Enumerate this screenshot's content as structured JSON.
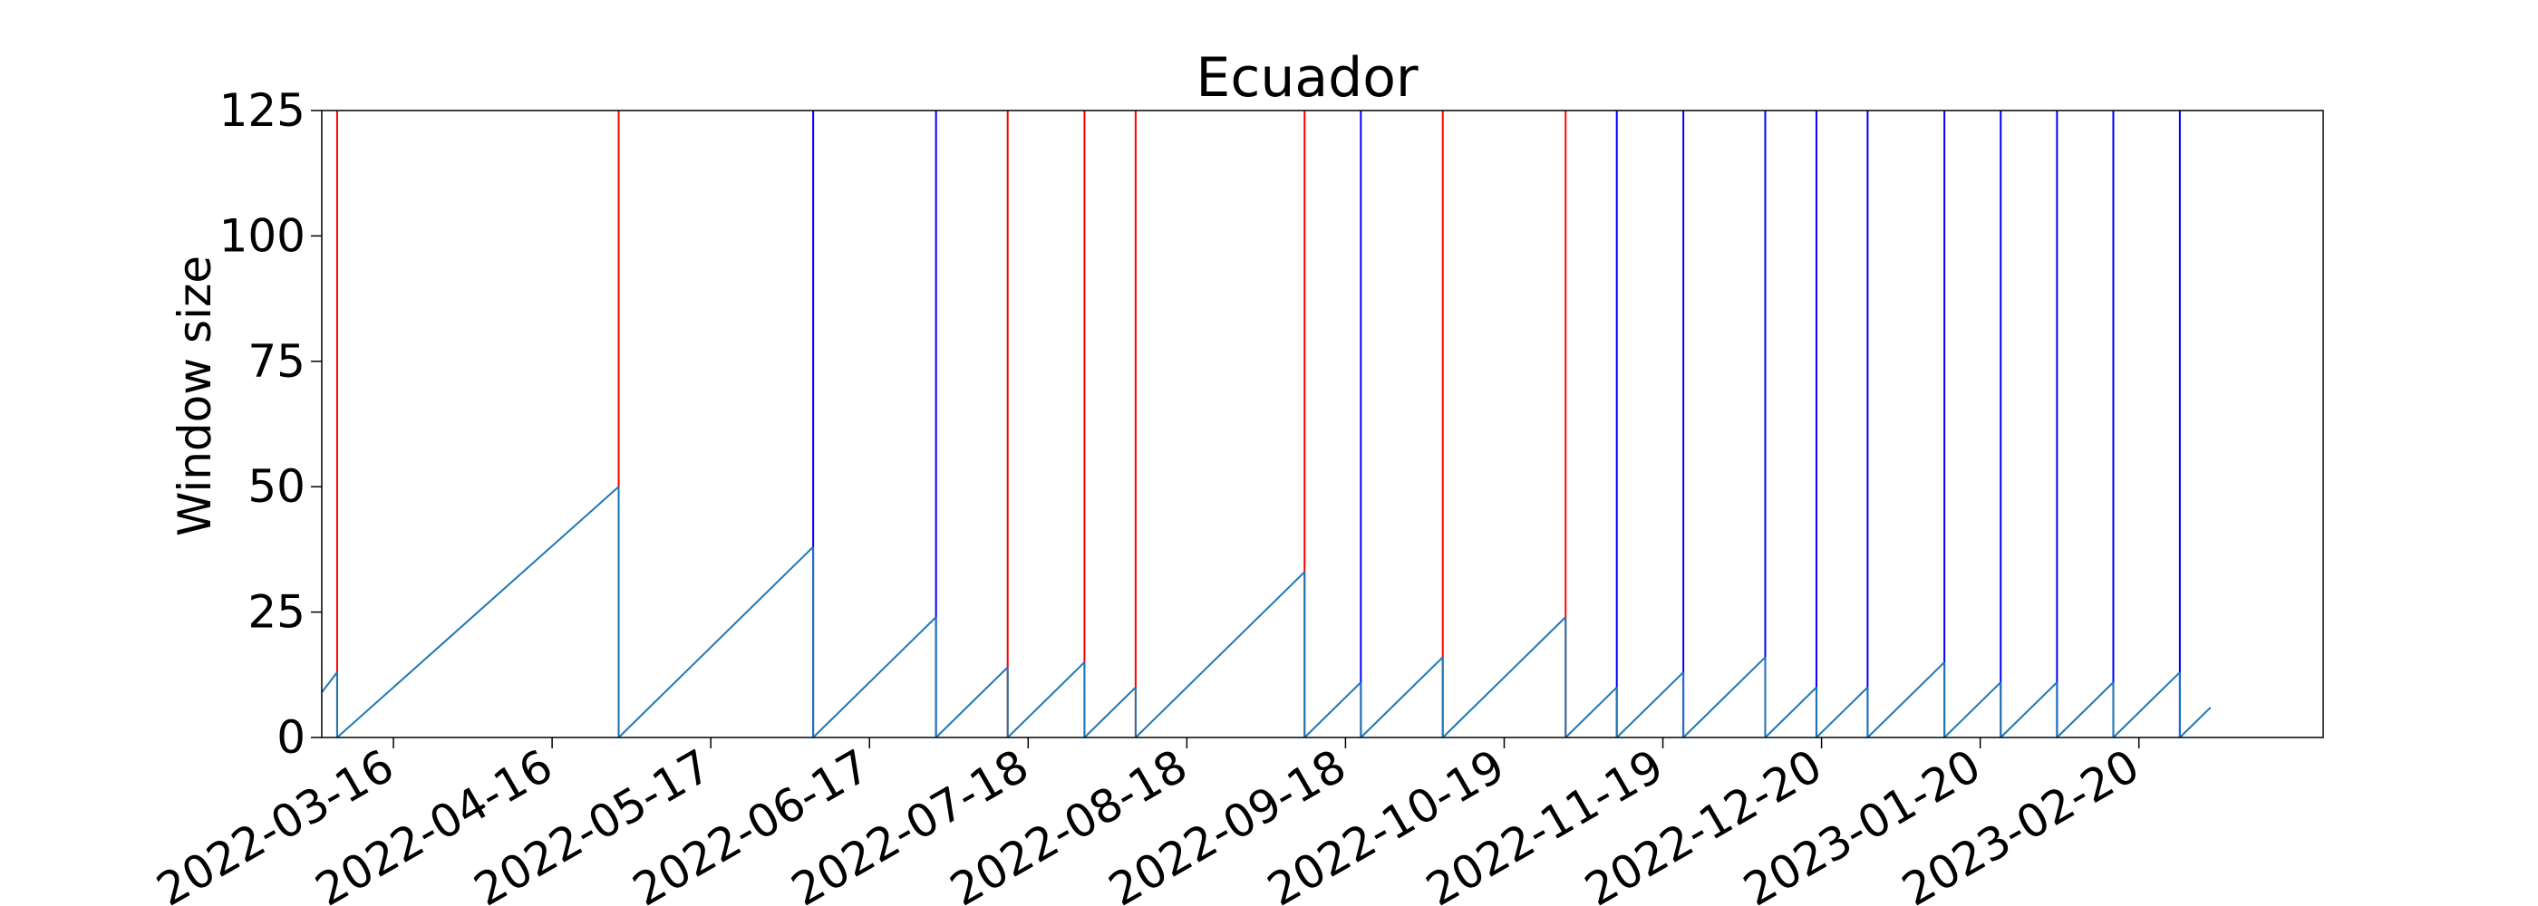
{
  "chart_data": {
    "type": "line",
    "title": "Ecuador",
    "xlabel": "",
    "ylabel": "Window size",
    "xlim": [
      "2022-03-02",
      "2023-03-28"
    ],
    "ylim": [
      0,
      125
    ],
    "yticks": [
      0,
      25,
      50,
      75,
      100,
      125
    ],
    "xticks": [
      "2022-03-16",
      "2022-04-16",
      "2022-05-17",
      "2022-06-17",
      "2022-07-18",
      "2022-08-18",
      "2022-09-18",
      "2022-10-19",
      "2022-11-19",
      "2022-12-20",
      "2023-01-20",
      "2023-02-20"
    ],
    "grid": false,
    "colors": {
      "window_line": "#1f77b4",
      "red_marker": "#ff0000",
      "blue_marker": "#0000ff",
      "axes": "#000000"
    },
    "series": [
      {
        "style": "sawtooth",
        "segments": [
          {
            "x": [
              "2022-03-02",
              "2022-03-05"
            ],
            "y": [
              9,
              13
            ]
          },
          {
            "x": [
              "2022-03-05",
              "2022-04-29"
            ],
            "y": [
              0,
              50
            ]
          },
          {
            "x": [
              "2022-04-29",
              "2022-06-06"
            ],
            "y": [
              0,
              38
            ]
          },
          {
            "x": [
              "2022-06-06",
              "2022-06-30"
            ],
            "y": [
              0,
              24
            ]
          },
          {
            "x": [
              "2022-06-30",
              "2022-07-14"
            ],
            "y": [
              0,
              14
            ]
          },
          {
            "x": [
              "2022-07-14",
              "2022-07-29"
            ],
            "y": [
              0,
              15
            ]
          },
          {
            "x": [
              "2022-07-29",
              "2022-08-08"
            ],
            "y": [
              0,
              10
            ]
          },
          {
            "x": [
              "2022-08-08",
              "2022-09-10"
            ],
            "y": [
              0,
              33
            ]
          },
          {
            "x": [
              "2022-09-10",
              "2022-09-21"
            ],
            "y": [
              0,
              11
            ]
          },
          {
            "x": [
              "2022-09-21",
              "2022-10-07"
            ],
            "y": [
              0,
              16
            ]
          },
          {
            "x": [
              "2022-10-07",
              "2022-10-31"
            ],
            "y": [
              0,
              24
            ]
          },
          {
            "x": [
              "2022-10-31",
              "2022-11-10"
            ],
            "y": [
              0,
              10
            ]
          },
          {
            "x": [
              "2022-11-10",
              "2022-11-23"
            ],
            "y": [
              0,
              13
            ]
          },
          {
            "x": [
              "2022-11-23",
              "2022-12-09"
            ],
            "y": [
              0,
              16
            ]
          },
          {
            "x": [
              "2022-12-09",
              "2022-12-19"
            ],
            "y": [
              0,
              10
            ]
          },
          {
            "x": [
              "2022-12-19",
              "2022-12-29"
            ],
            "y": [
              0,
              10
            ]
          },
          {
            "x": [
              "2022-12-29",
              "2023-01-13"
            ],
            "y": [
              0,
              15
            ]
          },
          {
            "x": [
              "2023-01-13",
              "2023-01-24"
            ],
            "y": [
              0,
              11
            ]
          },
          {
            "x": [
              "2023-01-24",
              "2023-02-04"
            ],
            "y": [
              0,
              11
            ]
          },
          {
            "x": [
              "2023-02-04",
              "2023-02-15"
            ],
            "y": [
              0,
              11
            ]
          },
          {
            "x": [
              "2023-02-15",
              "2023-02-28"
            ],
            "y": [
              0,
              13
            ]
          },
          {
            "x": [
              "2023-02-28",
              "2023-03-06"
            ],
            "y": [
              0,
              6
            ]
          }
        ]
      }
    ],
    "vertical_markers": [
      {
        "date": "2022-03-05",
        "color": "red"
      },
      {
        "date": "2022-04-29",
        "color": "red"
      },
      {
        "date": "2022-06-06",
        "color": "blue"
      },
      {
        "date": "2022-06-30",
        "color": "blue"
      },
      {
        "date": "2022-07-14",
        "color": "red"
      },
      {
        "date": "2022-07-29",
        "color": "red"
      },
      {
        "date": "2022-08-08",
        "color": "red"
      },
      {
        "date": "2022-09-10",
        "color": "red"
      },
      {
        "date": "2022-09-21",
        "color": "blue"
      },
      {
        "date": "2022-10-07",
        "color": "red"
      },
      {
        "date": "2022-10-31",
        "color": "red"
      },
      {
        "date": "2022-11-10",
        "color": "blue"
      },
      {
        "date": "2022-11-23",
        "color": "blue"
      },
      {
        "date": "2022-12-09",
        "color": "blue"
      },
      {
        "date": "2022-12-19",
        "color": "blue"
      },
      {
        "date": "2022-12-29",
        "color": "blue"
      },
      {
        "date": "2023-01-13",
        "color": "blue"
      },
      {
        "date": "2023-01-24",
        "color": "blue"
      },
      {
        "date": "2023-02-04",
        "color": "blue"
      },
      {
        "date": "2023-02-15",
        "color": "blue"
      },
      {
        "date": "2023-02-28",
        "color": "blue"
      }
    ]
  }
}
